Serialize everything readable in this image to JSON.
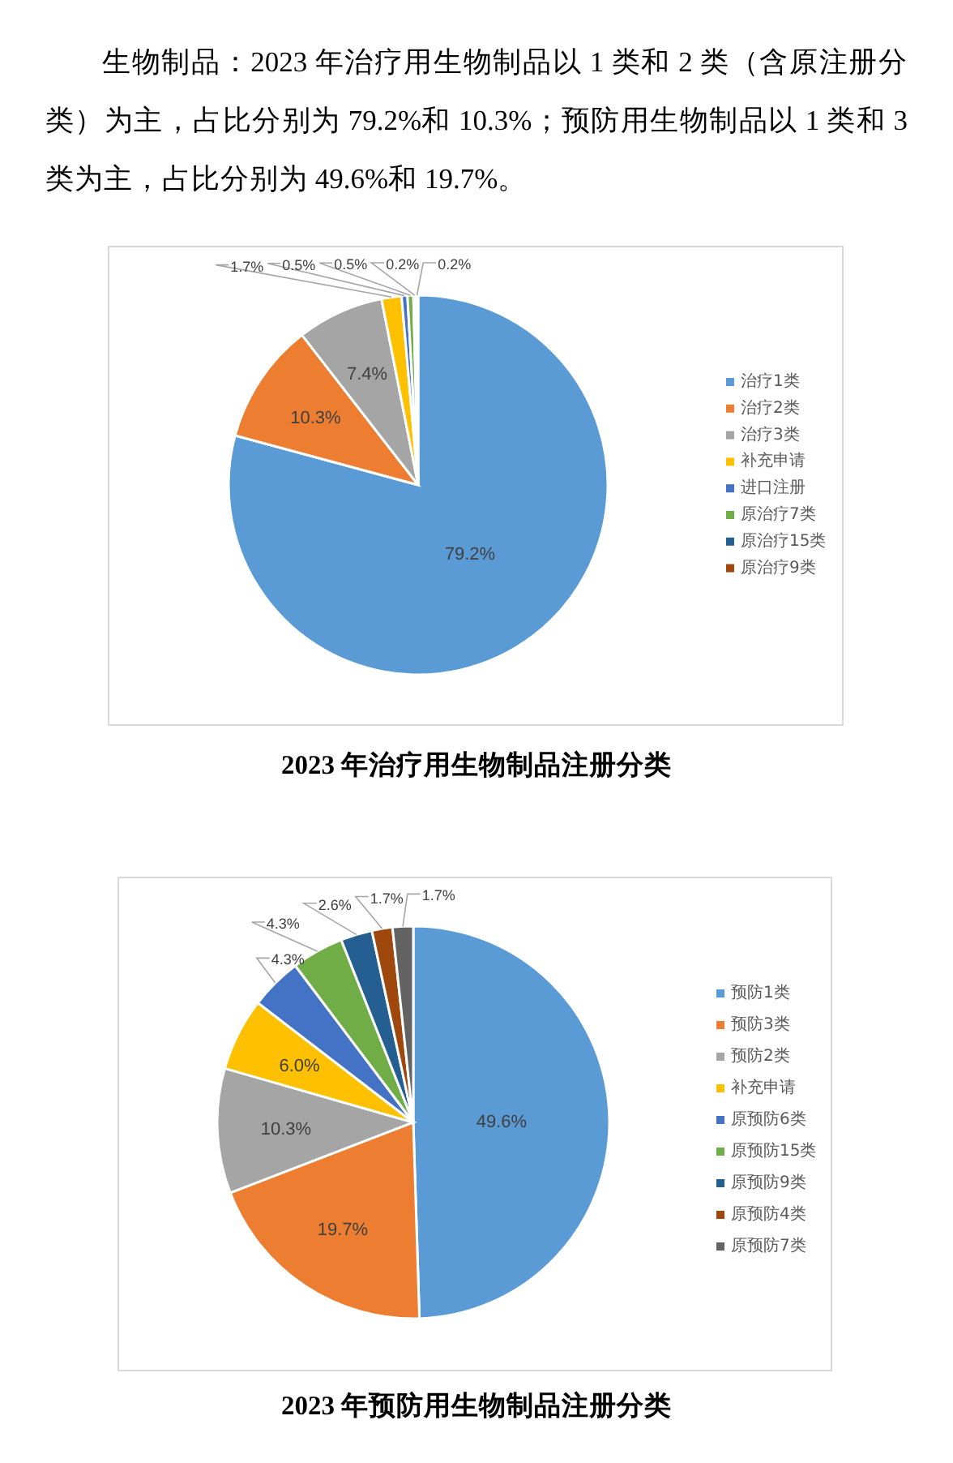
{
  "chart_data": [
    {
      "type": "pie",
      "title": "2023 年治疗用生物制品注册分类",
      "annotations": [
        "生物制品：2023 年治疗用生物制品以 1 类和 2 类（含原注册分类）为主，占比分别为 79.2%和 10.3%；预防用生物制品以 1 类和 3 类为主，占比分别为 49.6%和 19.7%。"
      ],
      "categories": [
        "治疗1类",
        "治疗2类",
        "治疗3类",
        "补充申请",
        "进口注册",
        "原治疗7类",
        "原治疗15类",
        "原治疗9类"
      ],
      "values": [
        79.2,
        10.3,
        7.4,
        1.7,
        0.5,
        0.5,
        0.2,
        0.2
      ],
      "value_labels": [
        "79.2%",
        "10.3%",
        "7.4%",
        "1.7%",
        "0.5%",
        "0.5%",
        "0.2%",
        "0.2%"
      ],
      "colors": [
        "#5b9bd5",
        "#ed7d31",
        "#a5a5a5",
        "#ffc000",
        "#4472c4",
        "#70ad47",
        "#255e91",
        "#9e480e"
      ],
      "legend": "right"
    },
    {
      "type": "pie",
      "title": "2023 年预防用生物制品注册分类",
      "categories": [
        "预防1类",
        "预防3类",
        "预防2类",
        "补充申请",
        "原预防6类",
        "原预防15类",
        "原预防9类",
        "原预防4类",
        "原预防7类"
      ],
      "values": [
        49.6,
        19.7,
        10.3,
        6.0,
        4.3,
        4.3,
        2.6,
        1.7,
        1.7
      ],
      "value_labels": [
        "49.6%",
        "19.7%",
        "10.3%",
        "6.0%",
        "4.3%",
        "4.3%",
        "2.6%",
        "1.7%",
        "1.7%"
      ],
      "colors": [
        "#5b9bd5",
        "#ed7d31",
        "#a5a5a5",
        "#ffc000",
        "#4472c4",
        "#70ad47",
        "#255e91",
        "#9e480e",
        "#636363"
      ],
      "legend": "right"
    }
  ]
}
